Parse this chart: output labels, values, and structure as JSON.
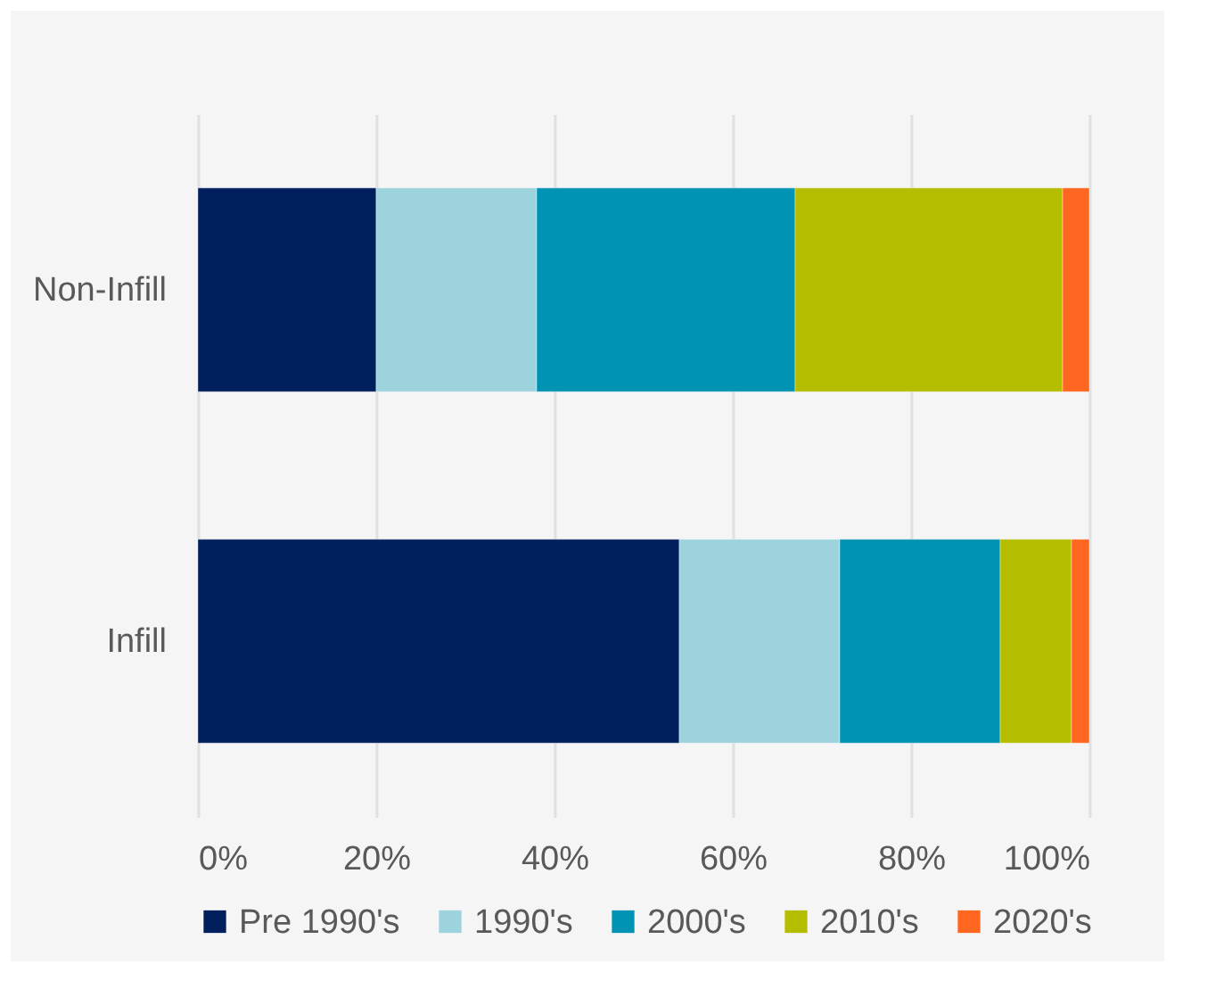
{
  "chart_data": {
    "type": "bar",
    "orientation": "horizontal",
    "stacked": true,
    "categories": [
      "Non-Infill",
      "Infill"
    ],
    "series": [
      {
        "name": "Pre 1990's",
        "color": "#001f5c",
        "values": [
          20,
          54
        ]
      },
      {
        "name": "1990's",
        "color": "#9dd3dc",
        "values": [
          18,
          18
        ]
      },
      {
        "name": "2000's",
        "color": "#0093b4",
        "values": [
          29,
          18
        ]
      },
      {
        "name": "2010's",
        "color": "#b5bd00",
        "values": [
          30,
          8
        ]
      },
      {
        "name": "2020's",
        "color": "#ff6720",
        "values": [
          3,
          2
        ]
      }
    ],
    "xlim": [
      0,
      100
    ],
    "xticks": [
      {
        "value": 0,
        "label": "0%"
      },
      {
        "value": 20,
        "label": "20%"
      },
      {
        "value": 40,
        "label": "40%"
      },
      {
        "value": 60,
        "label": "60%"
      },
      {
        "value": 80,
        "label": "80%"
      },
      {
        "value": 100,
        "label": "100%"
      }
    ],
    "grid": "x",
    "legend": "bottom"
  }
}
